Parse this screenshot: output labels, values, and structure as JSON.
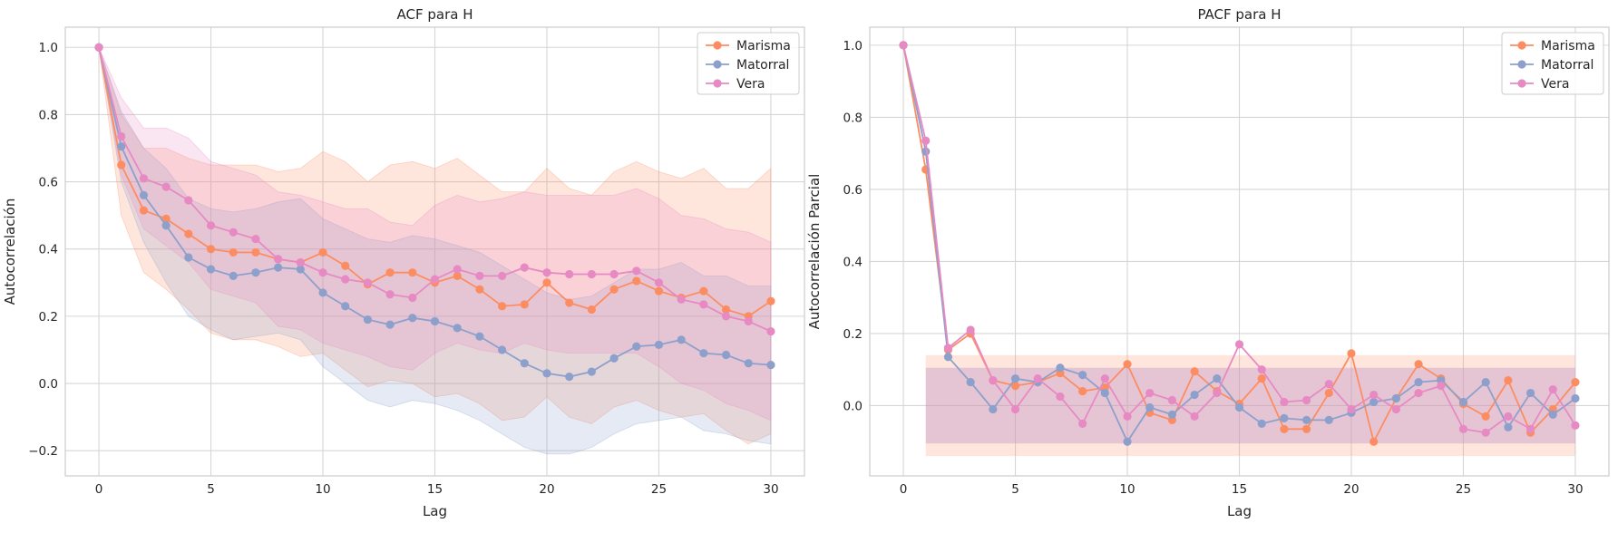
{
  "chart_data": [
    {
      "type": "line",
      "title": "ACF para H",
      "xlabel": "Lag",
      "ylabel": "Autocorrelación",
      "xlim": [
        -1.5,
        31.5
      ],
      "ylim": [
        -0.275,
        1.06
      ],
      "xticks": [
        0,
        5,
        10,
        15,
        20,
        25,
        30
      ],
      "yticks": [
        -0.2,
        0.0,
        0.2,
        0.4,
        0.6,
        0.8,
        1.0
      ],
      "ytick_labels": [
        "−0.2",
        "0.0",
        "0.2",
        "0.4",
        "0.6",
        "0.8",
        "1.0"
      ],
      "grid": true,
      "legend_position": "upper right",
      "x": [
        0,
        1,
        2,
        3,
        4,
        5,
        6,
        7,
        8,
        9,
        10,
        11,
        12,
        13,
        14,
        15,
        16,
        17,
        18,
        19,
        20,
        21,
        22,
        23,
        24,
        25,
        26,
        27,
        28,
        29,
        30
      ],
      "series": [
        {
          "name": "Marisma",
          "color": "#fc8d62",
          "values": [
            1.0,
            0.65,
            0.515,
            0.49,
            0.445,
            0.4,
            0.39,
            0.39,
            0.37,
            0.36,
            0.39,
            0.35,
            0.295,
            0.33,
            0.33,
            0.3,
            0.32,
            0.28,
            0.23,
            0.235,
            0.3,
            0.24,
            0.22,
            0.28,
            0.305,
            0.275,
            0.255,
            0.275,
            0.22,
            0.2,
            0.245
          ],
          "band_lower": [
            1.0,
            0.5,
            0.33,
            0.28,
            0.22,
            0.15,
            0.13,
            0.13,
            0.11,
            0.08,
            0.09,
            0.04,
            -0.01,
            0.01,
            0.0,
            -0.04,
            -0.03,
            -0.06,
            -0.11,
            -0.1,
            -0.04,
            -0.1,
            -0.12,
            -0.07,
            -0.05,
            -0.08,
            -0.1,
            -0.09,
            -0.14,
            -0.18,
            -0.15
          ],
          "band_upper": [
            1.0,
            0.8,
            0.7,
            0.7,
            0.67,
            0.65,
            0.65,
            0.65,
            0.63,
            0.64,
            0.69,
            0.66,
            0.6,
            0.65,
            0.66,
            0.64,
            0.67,
            0.62,
            0.57,
            0.57,
            0.64,
            0.58,
            0.56,
            0.63,
            0.66,
            0.63,
            0.61,
            0.64,
            0.58,
            0.58,
            0.64
          ]
        },
        {
          "name": "Matorral",
          "color": "#8da0cb",
          "values": [
            1.0,
            0.705,
            0.56,
            0.47,
            0.375,
            0.34,
            0.32,
            0.33,
            0.345,
            0.34,
            0.27,
            0.23,
            0.19,
            0.175,
            0.195,
            0.185,
            0.165,
            0.14,
            0.1,
            0.06,
            0.03,
            0.02,
            0.035,
            0.075,
            0.11,
            0.115,
            0.13,
            0.09,
            0.085,
            0.06,
            0.055
          ],
          "band_lower": [
            1.0,
            0.6,
            0.42,
            0.3,
            0.2,
            0.16,
            0.13,
            0.14,
            0.15,
            0.13,
            0.05,
            0.0,
            -0.05,
            -0.07,
            -0.05,
            -0.06,
            -0.08,
            -0.11,
            -0.15,
            -0.19,
            -0.21,
            -0.21,
            -0.19,
            -0.15,
            -0.12,
            -0.11,
            -0.1,
            -0.14,
            -0.15,
            -0.17,
            -0.18
          ],
          "band_upper": [
            1.0,
            0.81,
            0.7,
            0.64,
            0.55,
            0.52,
            0.51,
            0.52,
            0.54,
            0.55,
            0.49,
            0.46,
            0.43,
            0.42,
            0.44,
            0.43,
            0.41,
            0.39,
            0.35,
            0.31,
            0.27,
            0.25,
            0.26,
            0.3,
            0.34,
            0.34,
            0.36,
            0.32,
            0.32,
            0.29,
            0.29
          ]
        },
        {
          "name": "Vera",
          "color": "#e78ac3",
          "values": [
            1.0,
            0.735,
            0.61,
            0.585,
            0.545,
            0.47,
            0.45,
            0.43,
            0.37,
            0.36,
            0.33,
            0.31,
            0.3,
            0.265,
            0.255,
            0.31,
            0.34,
            0.32,
            0.32,
            0.345,
            0.33,
            0.325,
            0.325,
            0.325,
            0.335,
            0.3,
            0.25,
            0.235,
            0.2,
            0.185,
            0.155
          ],
          "band_lower": [
            1.0,
            0.62,
            0.46,
            0.41,
            0.36,
            0.28,
            0.26,
            0.24,
            0.17,
            0.16,
            0.12,
            0.1,
            0.08,
            0.05,
            0.04,
            0.09,
            0.12,
            0.1,
            0.09,
            0.12,
            0.1,
            0.09,
            0.09,
            0.09,
            0.09,
            0.05,
            0.0,
            -0.02,
            -0.06,
            -0.08,
            -0.11
          ],
          "band_upper": [
            1.0,
            0.85,
            0.76,
            0.76,
            0.73,
            0.66,
            0.64,
            0.62,
            0.57,
            0.56,
            0.54,
            0.52,
            0.52,
            0.48,
            0.47,
            0.53,
            0.56,
            0.54,
            0.55,
            0.57,
            0.56,
            0.56,
            0.56,
            0.56,
            0.58,
            0.55,
            0.5,
            0.49,
            0.46,
            0.45,
            0.42
          ]
        }
      ]
    },
    {
      "type": "line",
      "title": "PACF para H",
      "xlabel": "Lag",
      "ylabel": "Autocorrelación Parcial",
      "xlim": [
        -1.5,
        31.5
      ],
      "ylim": [
        -0.195,
        1.05
      ],
      "xticks": [
        0,
        5,
        10,
        15,
        20,
        25,
        30
      ],
      "yticks": [
        0.0,
        0.2,
        0.4,
        0.6,
        0.8,
        1.0
      ],
      "ytick_labels": [
        "0.0",
        "0.2",
        "0.4",
        "0.6",
        "0.8",
        "1.0"
      ],
      "grid": true,
      "legend_position": "upper right",
      "x": [
        0,
        1,
        2,
        3,
        4,
        5,
        6,
        7,
        8,
        9,
        10,
        11,
        12,
        13,
        14,
        15,
        16,
        17,
        18,
        19,
        20,
        21,
        22,
        23,
        24,
        25,
        26,
        27,
        28,
        29,
        30
      ],
      "confidence_bands": [
        {
          "series": "Marisma",
          "x": [
            1,
            30
          ],
          "bounds": [
            -0.14,
            0.14
          ]
        },
        {
          "series": "Matorral",
          "x": [
            1,
            30
          ],
          "bounds": [
            -0.105,
            0.105
          ]
        },
        {
          "series": "Vera",
          "x": [
            1,
            30
          ],
          "bounds": [
            -0.105,
            0.105
          ]
        }
      ],
      "series": [
        {
          "name": "Marisma",
          "color": "#fc8d62",
          "values": [
            1.0,
            0.655,
            0.155,
            0.2,
            0.07,
            0.055,
            0.065,
            0.09,
            0.04,
            0.05,
            0.115,
            -0.02,
            -0.04,
            0.095,
            0.04,
            0.005,
            0.075,
            -0.065,
            -0.065,
            0.035,
            0.145,
            -0.1,
            0.02,
            0.115,
            0.075,
            0.005,
            -0.03,
            0.07,
            -0.075,
            -0.01,
            0.065
          ]
        },
        {
          "name": "Matorral",
          "color": "#8da0cb",
          "values": [
            1.0,
            0.705,
            0.135,
            0.065,
            -0.01,
            0.075,
            0.065,
            0.105,
            0.085,
            0.035,
            -0.1,
            -0.005,
            -0.025,
            0.03,
            0.075,
            -0.005,
            -0.05,
            -0.035,
            -0.04,
            -0.04,
            -0.02,
            0.01,
            0.02,
            0.065,
            0.07,
            0.01,
            0.065,
            -0.06,
            0.035,
            -0.025,
            0.02
          ]
        },
        {
          "name": "Vera",
          "color": "#e78ac3",
          "values": [
            1.0,
            0.735,
            0.16,
            0.21,
            0.07,
            -0.01,
            0.075,
            0.025,
            -0.05,
            0.075,
            -0.03,
            0.035,
            0.015,
            -0.03,
            0.035,
            0.17,
            0.1,
            0.01,
            0.015,
            0.06,
            -0.01,
            0.03,
            -0.01,
            0.035,
            0.055,
            -0.065,
            -0.075,
            -0.03,
            -0.065,
            0.045,
            -0.055
          ]
        }
      ]
    }
  ]
}
